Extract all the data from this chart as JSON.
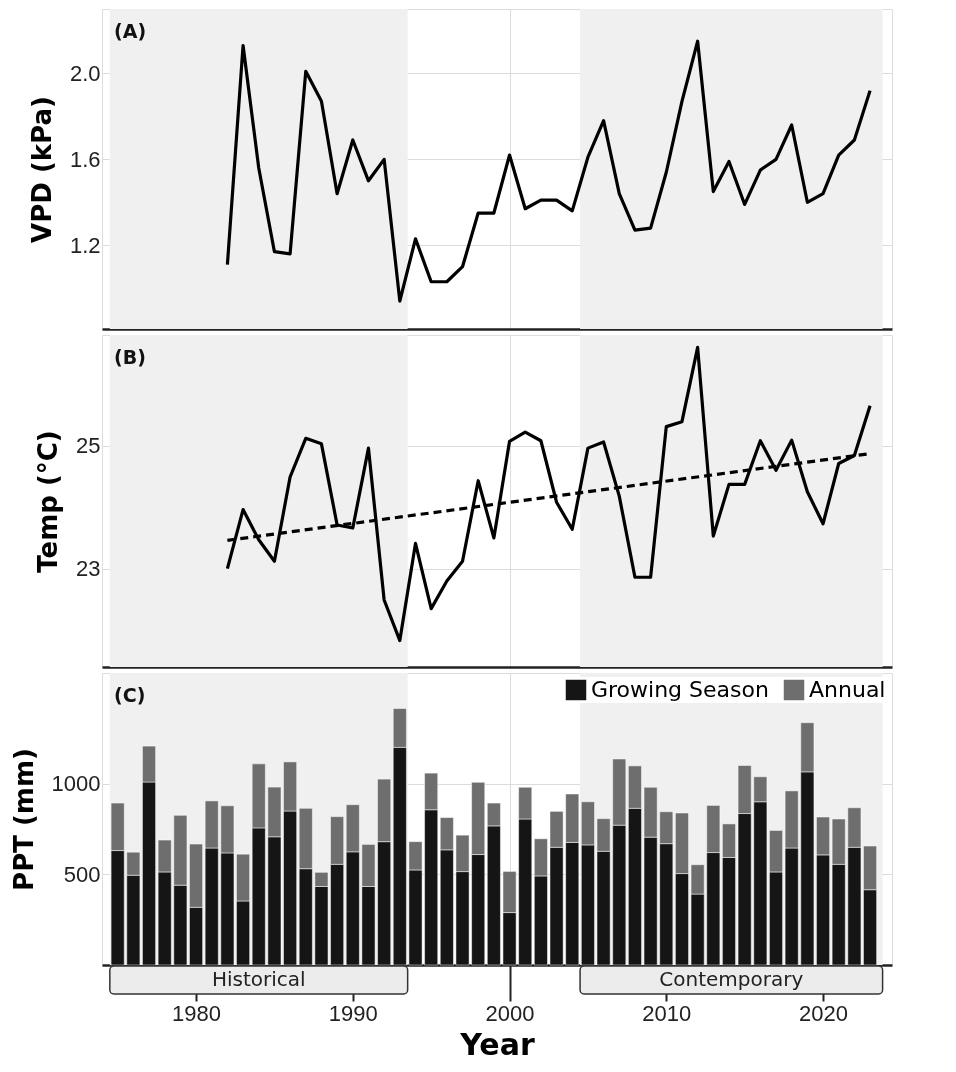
{
  "chart_data": [
    {
      "type": "line",
      "ylabel": "VPD (kPa)",
      "annotations": [
        "(A)"
      ],
      "xlim": [
        1974,
        2024.4
      ],
      "ylim": [
        0.81,
        2.3
      ],
      "xticks": [
        1980,
        1990,
        2000,
        2010,
        2020
      ],
      "yticks": [
        1.2,
        1.6,
        {
          "value": 2,
          "label": "2.0"
        }
      ],
      "tick_labels": "y",
      "grid": true,
      "bands": [
        {
          "axis": "x",
          "from": 1974.5,
          "to": 1993.5,
          "color": "#f0f0f0"
        },
        {
          "axis": "x",
          "from": 2004.5,
          "to": 2023.8,
          "color": "#f0f0f0"
        }
      ],
      "x": [
        1982,
        1983,
        1984,
        1985,
        1986,
        1987,
        1988,
        1989,
        1990,
        1991,
        1992,
        1993,
        1994,
        1995,
        1996,
        1997,
        1998,
        1999,
        2000,
        2001,
        2002,
        2003,
        2004,
        2005,
        2006,
        2007,
        2008,
        2009,
        2010,
        2011,
        2012,
        2013,
        2014,
        2015,
        2016,
        2017,
        2018,
        2019,
        2020,
        2021,
        2022,
        2023
      ],
      "series": [
        {
          "color": "#000000",
          "values": [
            1.11,
            2.13,
            1.56,
            1.17,
            1.16,
            2.01,
            1.87,
            1.44,
            1.69,
            1.5,
            1.6,
            0.94,
            1.23,
            1.03,
            1.03,
            1.1,
            1.35,
            1.35,
            1.62,
            1.37,
            1.41,
            1.41,
            1.36,
            1.61,
            1.78,
            1.44,
            1.27,
            1.28,
            1.54,
            1.87,
            2.15,
            1.45,
            1.59,
            1.39,
            1.55,
            1.6,
            1.76,
            1.4,
            1.44,
            1.62,
            1.69,
            1.92
          ]
        }
      ]
    },
    {
      "type": "line",
      "ylabel": "Temp (°C)",
      "annotations": [
        "(B)"
      ],
      "xlim": [
        1974,
        2024.4
      ],
      "ylim": [
        21.4,
        26.8
      ],
      "xticks": [
        1980,
        1990,
        2000,
        2010,
        2020
      ],
      "yticks": [
        23,
        25
      ],
      "tick_labels": "y",
      "grid": true,
      "bands": [
        {
          "axis": "x",
          "from": 1974.5,
          "to": 1993.5,
          "color": "#f0f0f0"
        },
        {
          "axis": "x",
          "from": 2004.5,
          "to": 2023.8,
          "color": "#f0f0f0"
        }
      ],
      "x": [
        1982,
        1983,
        1984,
        1985,
        1986,
        1987,
        1988,
        1989,
        1990,
        1991,
        1992,
        1993,
        1994,
        1995,
        1996,
        1997,
        1998,
        1999,
        2000,
        2001,
        2002,
        2003,
        2004,
        2005,
        2006,
        2007,
        2008,
        2009,
        2010,
        2011,
        2012,
        2013,
        2014,
        2015,
        2016,
        2017,
        2018,
        2019,
        2020,
        2021,
        2022,
        2023
      ],
      "series": [
        {
          "color": "#000000",
          "values": [
            23.0,
            23.96,
            23.47,
            23.12,
            24.49,
            25.12,
            25.03,
            23.71,
            23.66,
            24.96,
            22.49,
            21.83,
            23.41,
            22.35,
            22.8,
            23.12,
            24.43,
            23.5,
            25.07,
            25.22,
            25.08,
            24.08,
            23.64,
            24.96,
            25.06,
            24.18,
            22.86,
            22.86,
            25.31,
            25.39,
            26.6,
            23.53,
            24.37,
            24.37,
            25.08,
            24.6,
            25.09,
            24.25,
            23.73,
            24.71,
            24.84,
            25.65
          ]
        },
        {
          "type": "line",
          "color": "#000000",
          "line_style": "dashed",
          "x": [
            1982,
            2023
          ],
          "values": [
            23.46,
            24.87
          ]
        }
      ]
    },
    {
      "type": "bar",
      "stacked": true,
      "xlabel": "Year",
      "ylabel": "PPT (mm)",
      "annotations": [
        "(C)"
      ],
      "legend": "top right",
      "xlim": [
        1974,
        2024.4
      ],
      "ylim": [
        0,
        1610
      ],
      "xticks": [
        1980,
        1990,
        2000,
        2010,
        2020
      ],
      "yticks": [
        500,
        1000
      ],
      "grid": true,
      "bands": [
        {
          "axis": "x",
          "from": 1974.5,
          "to": 1993.5,
          "color": "#f0f0f0",
          "label": "Historical"
        },
        {
          "axis": "x",
          "from": 2004.5,
          "to": 2023.8,
          "color": "#f0f0f0",
          "label": "Contemporary"
        }
      ],
      "x": [
        1975,
        1976,
        1977,
        1978,
        1979,
        1980,
        1981,
        1982,
        1983,
        1984,
        1985,
        1986,
        1987,
        1988,
        1989,
        1990,
        1991,
        1992,
        1993,
        1994,
        1995,
        1996,
        1997,
        1998,
        1999,
        2000,
        2001,
        2002,
        2003,
        2004,
        2005,
        2006,
        2007,
        2008,
        2009,
        2010,
        2011,
        2012,
        2013,
        2014,
        2015,
        2016,
        2017,
        2018,
        2019,
        2020,
        2021,
        2022,
        2023
      ],
      "series": [
        {
          "name": "Growing Season",
          "color": "#151515",
          "values": [
            631,
            495,
            1009,
            513,
            440,
            318,
            645,
            618,
            353,
            756,
            707,
            849,
            531,
            433,
            555,
            624,
            433,
            680,
            1200,
            524,
            856,
            635,
            515,
            609,
            767,
            289,
            805,
            491,
            649,
            676,
            662,
            627,
            771,
            864,
            705,
            669,
            504,
            391,
            620,
            593,
            835,
            900,
            513,
            645,
            1065,
            607,
            555,
            649,
            415
          ]
        },
        {
          "name": "Annual",
          "color": "#6e6e6e",
          "values": [
            262,
            127,
            198,
            176,
            385,
            349,
            260,
            260,
            258,
            353,
            274,
            271,
            333,
            78,
            263,
            260,
            232,
            345,
            214,
            156,
            202,
            178,
            201,
            398,
            126,
            227,
            175,
            205,
            198,
            267,
            238,
            180,
            365,
            234,
            275,
            176,
            334,
            162,
            260,
            185,
            265,
            138,
            229,
            315,
            271,
            209,
            250,
            218,
            241
          ]
        }
      ]
    }
  ]
}
